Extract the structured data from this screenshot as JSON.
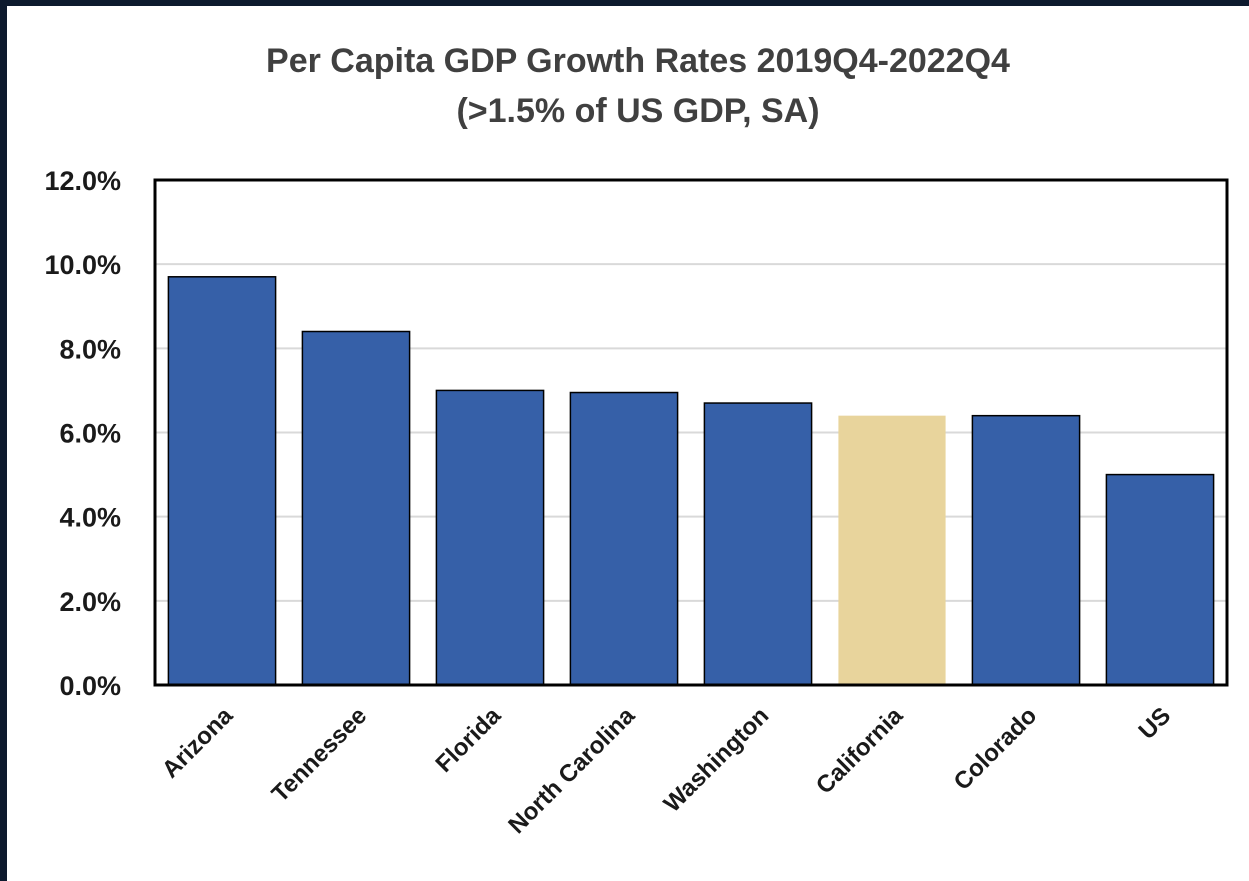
{
  "chart_data": {
    "type": "bar",
    "title": "Per Capita GDP Growth Rates 2019Q4-2022Q4",
    "subtitle": "(>1.5% of US GDP, SA)",
    "categories": [
      "Arizona",
      "Tennessee",
      "Florida",
      "North Carolina",
      "Washington",
      "California",
      "Colorado",
      "US"
    ],
    "values": [
      9.7,
      8.4,
      7.0,
      6.95,
      6.7,
      6.4,
      6.4,
      5.0
    ],
    "value_unit": "%",
    "ylim": [
      0,
      12
    ],
    "yticks": [
      0,
      2,
      4,
      6,
      8,
      10,
      12
    ],
    "ytick_labels": [
      "0.0%",
      "2.0%",
      "4.0%",
      "6.0%",
      "8.0%",
      "10.0%",
      "12.0%"
    ],
    "xlabel": "",
    "ylabel": "",
    "grid": true,
    "legend": "none",
    "colors": {
      "default_bar": "#3660a8",
      "highlight_bar": "#e8d49c",
      "highlight_category": "California",
      "grid": "#d9d9d9",
      "frame_background": "#0d1a2e"
    }
  }
}
